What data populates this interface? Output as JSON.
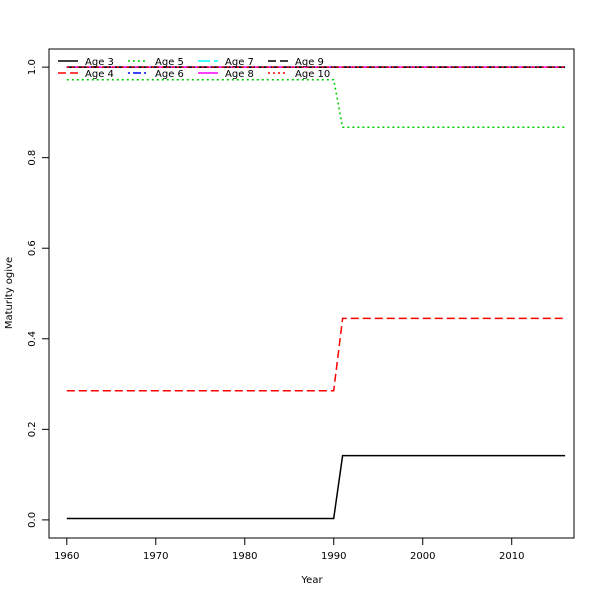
{
  "chart_data": {
    "type": "line",
    "title": "",
    "xlabel": "Year",
    "ylabel": "Maturity ogive",
    "xlim": [
      1958,
      2017
    ],
    "ylim": [
      -0.04,
      1.04
    ],
    "x_ticks": [
      1960,
      1970,
      1980,
      1990,
      2000,
      2010
    ],
    "y_ticks": [
      0.0,
      0.2,
      0.4,
      0.6,
      0.8,
      1.0
    ],
    "x_tick_labels": [
      "1960",
      "1970",
      "1980",
      "1990",
      "2000",
      "2010"
    ],
    "y_tick_labels": [
      "0.0",
      "0.2",
      "0.4",
      "0.6",
      "0.8",
      "1.0"
    ],
    "grid": false,
    "legend_position": "top-left",
    "x": [
      1960,
      1990,
      1991,
      2016
    ],
    "series": [
      {
        "name": "Age 3",
        "values": [
          0.003,
          0.003,
          0.142,
          0.142
        ],
        "color": "#000000",
        "dash": "solid"
      },
      {
        "name": "Age 4",
        "values": [
          0.285,
          0.285,
          0.445,
          0.445
        ],
        "color": "#ff0000",
        "dash": "dashed"
      },
      {
        "name": "Age 5",
        "values": [
          0.972,
          0.972,
          0.867,
          0.867
        ],
        "color": "#00cd00",
        "dash": "dotted"
      },
      {
        "name": "Age 6",
        "values": [
          1.0,
          1.0,
          1.0,
          1.0
        ],
        "color": "#0000ff",
        "dash": "dotdash"
      },
      {
        "name": "Age 7",
        "values": [
          1.0,
          1.0,
          1.0,
          1.0
        ],
        "color": "#00ffff",
        "dash": "longdash"
      },
      {
        "name": "Age 8",
        "values": [
          1.0,
          1.0,
          1.0,
          1.0
        ],
        "color": "#ff00ff",
        "dash": "solid"
      },
      {
        "name": "Age 9",
        "values": [
          1.0,
          1.0,
          1.0,
          1.0
        ],
        "color": "#000000",
        "dash": "dashed"
      },
      {
        "name": "Age 10",
        "values": [
          1.0,
          1.0,
          1.0,
          1.0
        ],
        "color": "#ff0000",
        "dash": "dotted"
      }
    ]
  }
}
